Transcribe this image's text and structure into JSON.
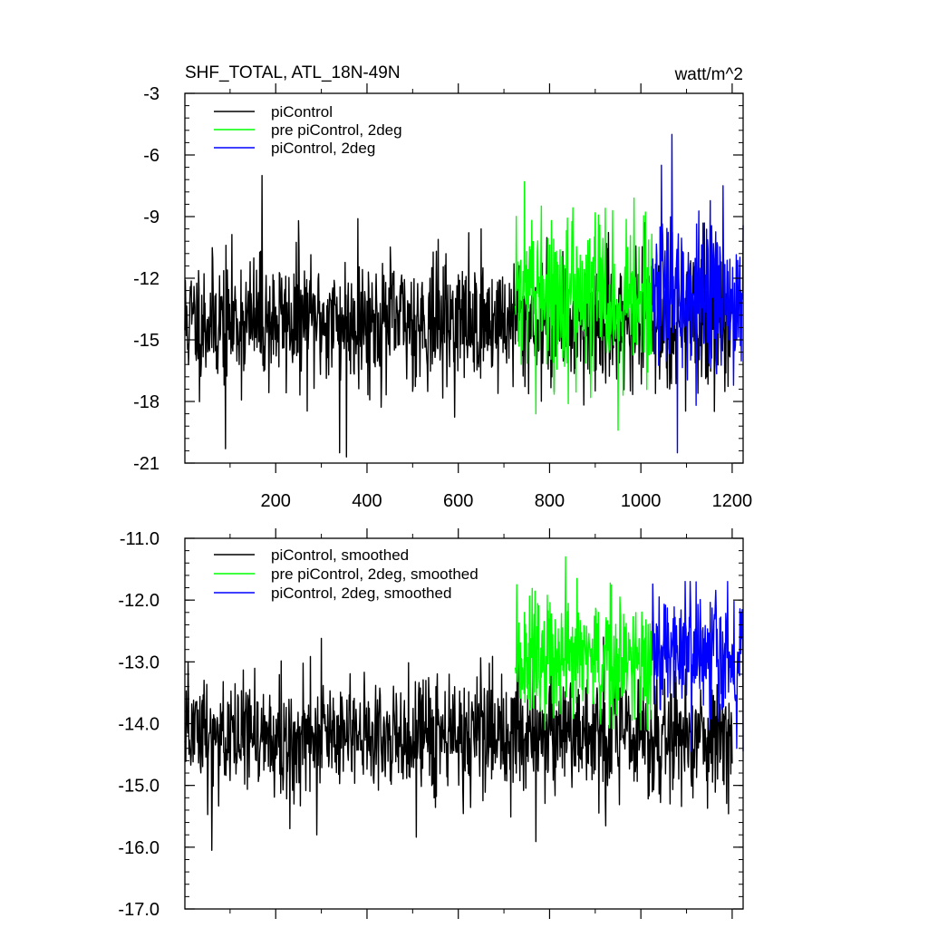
{
  "title_left": "SHF_TOTAL, ATL_18N-49N",
  "title_right": "watt/m^2",
  "chart_data": [
    {
      "type": "line",
      "name": "top-panel",
      "xlim": [
        1,
        1224
      ],
      "ylim": [
        -21,
        -3
      ],
      "x_ticks": [
        200,
        400,
        600,
        800,
        1000,
        1200
      ],
      "x_tick_labels": [
        "200",
        "400",
        "600",
        "800",
        "1000",
        "1200"
      ],
      "y_ticks": [
        -3,
        -6,
        -9,
        -12,
        -15,
        -18,
        -21
      ],
      "y_tick_labels": [
        "-3",
        "-6",
        "-9",
        "-12",
        "-15",
        "-18",
        "-21"
      ],
      "legend_position": "top-left",
      "series": [
        {
          "name": "piControl",
          "color": "#000000",
          "x_start": 1,
          "x_end": 1200,
          "mean": -14.1,
          "std": 1.55,
          "clip": [
            -20.7,
            -7.0
          ],
          "seed": 11,
          "peaks": [
            [
              170,
              -7.0
            ],
            [
              355,
              -20.7
            ],
            [
              340,
              -20.5
            ],
            [
              90,
              -20.3
            ],
            [
              250,
              -9.2
            ],
            [
              380,
              -9.1
            ]
          ]
        },
        {
          "name": "pre piControl, 2deg",
          "color": "#00ff00",
          "x_start": 725,
          "x_end": 1025,
          "mean": -12.9,
          "std": 1.75,
          "clip": [
            -19.4,
            -7.3
          ],
          "seed": 22,
          "peaks": [
            [
              745,
              -7.3
            ],
            [
              950,
              -19.4
            ],
            [
              770,
              -18.6
            ],
            [
              985,
              -8.1
            ]
          ]
        },
        {
          "name": "piControl, 2deg",
          "color": "#0000ff",
          "x_start": 1025,
          "x_end": 1224,
          "mean": -12.9,
          "std": 1.8,
          "clip": [
            -20.5,
            -5.0
          ],
          "seed": 33,
          "peaks": [
            [
              1068,
              -5.0
            ],
            [
              1080,
              -20.5
            ],
            [
              1045,
              -6.5
            ],
            [
              1180,
              -7.5
            ]
          ]
        }
      ]
    },
    {
      "type": "line",
      "name": "bottom-panel",
      "xlim": [
        1,
        1224
      ],
      "ylim": [
        -17.0,
        -11.0
      ],
      "x_ticks": [
        200,
        400,
        600,
        800,
        1000,
        1200
      ],
      "x_tick_labels": [],
      "y_ticks": [
        -11.0,
        -12.0,
        -13.0,
        -14.0,
        -15.0,
        -16.0,
        -17.0
      ],
      "y_tick_labels": [
        "-11.0",
        "-12.0",
        "-13.0",
        "-14.0",
        "-15.0",
        "-16.0",
        "-17.0"
      ],
      "legend_position": "top-left",
      "series": [
        {
          "name": "piControl, smoothed",
          "color": "#000000",
          "x_start": 1,
          "x_end": 1200,
          "mean": -14.2,
          "std": 0.5,
          "clip": [
            -16.05,
            -12.6
          ],
          "seed": 44,
          "peaks": [
            [
              60,
              -16.05
            ],
            [
              290,
              -15.8
            ],
            [
              300,
              -12.62
            ],
            [
              580,
              -13.2
            ]
          ]
        },
        {
          "name": "pre piControl, 2deg, smoothed",
          "color": "#00ff00",
          "x_start": 725,
          "x_end": 1025,
          "mean": -13.0,
          "std": 0.52,
          "clip": [
            -14.1,
            -11.3
          ],
          "seed": 55,
          "peaks": [
            [
              835,
              -11.3
            ],
            [
              790,
              -14.1
            ],
            [
              745,
              -12.2
            ]
          ]
        },
        {
          "name": "piControl, 2deg, smoothed",
          "color": "#0000ff",
          "x_start": 1025,
          "x_end": 1224,
          "mean": -12.9,
          "std": 0.5,
          "clip": [
            -14.45,
            -11.7
          ],
          "seed": 66,
          "peaks": [
            [
              1190,
              -11.7
            ],
            [
              1210,
              -14.4
            ],
            [
              1040,
              -11.95
            ]
          ]
        }
      ]
    }
  ]
}
